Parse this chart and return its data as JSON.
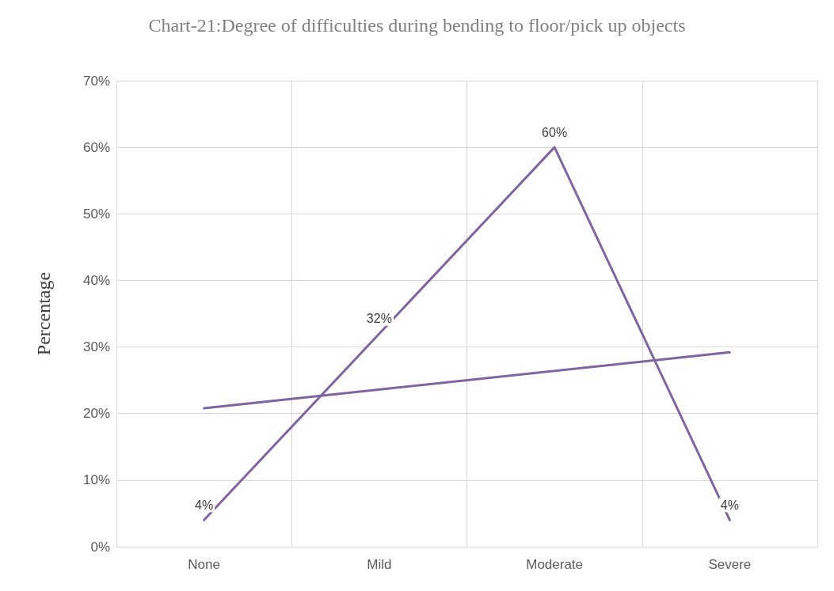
{
  "chart_data": {
    "type": "line",
    "title": "Chart-21:Degree of difficulties during bending to floor/pick up objects",
    "ylabel": "Percentage",
    "categories": [
      "None",
      "Mild",
      "Moderate",
      "Severe"
    ],
    "series": [
      {
        "color": "#8064a2",
        "values": [
          4,
          32,
          60,
          4
        ],
        "value_labels": [
          "4%",
          "32%",
          "60%",
          "4%"
        ]
      },
      {
        "type": "line",
        "color": "#8064a2",
        "x": [
          "None",
          "Severe"
        ],
        "values": [
          20.8,
          29.2
        ]
      }
    ],
    "ylim": [
      0,
      70
    ],
    "yticks": [
      {
        "value": 0,
        "label": "0%"
      },
      {
        "value": 10,
        "label": "10%"
      },
      {
        "value": 20,
        "label": "20%"
      },
      {
        "value": 30,
        "label": "30%"
      },
      {
        "value": 40,
        "label": "40%"
      },
      {
        "value": 50,
        "label": "50%"
      },
      {
        "value": 60,
        "label": "60%"
      },
      {
        "value": 70,
        "label": "70%"
      }
    ],
    "grid": true,
    "marker": "none",
    "line_style": "solid"
  }
}
